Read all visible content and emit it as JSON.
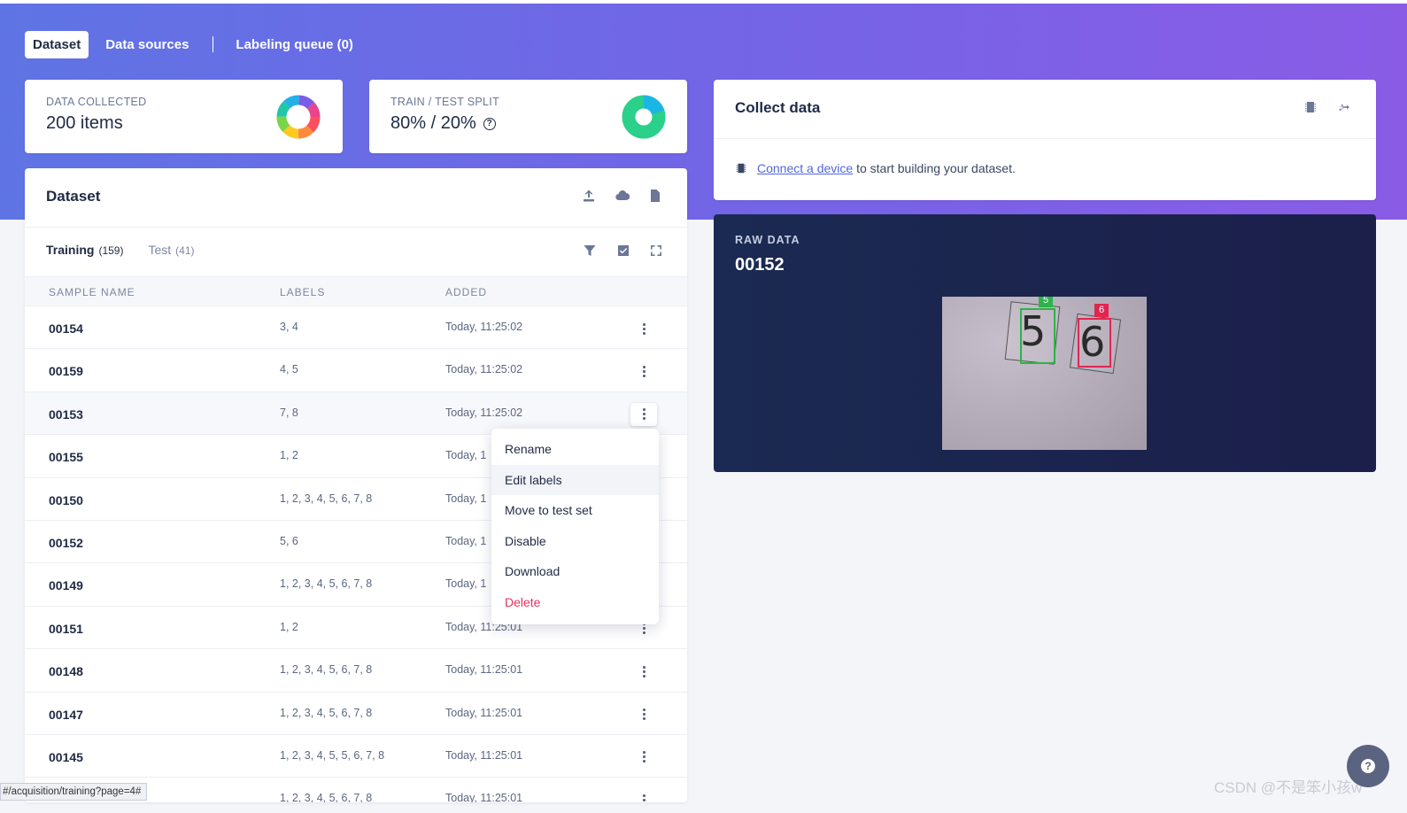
{
  "nav": {
    "tabs": [
      {
        "label": "Dataset",
        "active": true
      },
      {
        "label": "Data sources",
        "active": false
      },
      {
        "label": "Labeling queue (0)",
        "active": false
      }
    ]
  },
  "stats": {
    "collected": {
      "label": "DATA COLLECTED",
      "value": "200 items"
    },
    "split": {
      "label": "TRAIN / TEST SPLIT",
      "value": "80% / 20%",
      "help_icon": "question-circle-icon"
    }
  },
  "dataset": {
    "title": "Dataset",
    "header_icons": [
      "upload-icon",
      "cloud-icon",
      "document-icon"
    ],
    "tabs": [
      {
        "name": "Training",
        "count": "(159)",
        "active": true
      },
      {
        "name": "Test",
        "count": "(41)",
        "active": false
      }
    ],
    "toolbar_icons": [
      "filter-icon",
      "checkbox-icon",
      "expand-icon"
    ],
    "columns": [
      "SAMPLE NAME",
      "LABELS",
      "ADDED"
    ],
    "rows": [
      {
        "name": "00154",
        "labels": "3, 4",
        "added": "Today, 11:25:02"
      },
      {
        "name": "00159",
        "labels": "4, 5",
        "added": "Today, 11:25:02"
      },
      {
        "name": "00153",
        "labels": "7, 8",
        "added": "Today, 11:25:02"
      },
      {
        "name": "00155",
        "labels": "1, 2",
        "added": "Today, 1"
      },
      {
        "name": "00150",
        "labels": "1, 2, 3, 4, 5, 6, 7, 8",
        "added": "Today, 1"
      },
      {
        "name": "00152",
        "labels": "5, 6",
        "added": "Today, 1"
      },
      {
        "name": "00149",
        "labels": "1, 2, 3, 4, 5, 6, 7, 8",
        "added": "Today, 1"
      },
      {
        "name": "00151",
        "labels": "1, 2",
        "added": "Today, 11:25:01"
      },
      {
        "name": "00148",
        "labels": "1, 2, 3, 4, 5, 6, 7, 8",
        "added": "Today, 11:25:01"
      },
      {
        "name": "00147",
        "labels": "1, 2, 3, 4, 5, 6, 7, 8",
        "added": "Today, 11:25:01"
      },
      {
        "name": "00145",
        "labels": "1, 2, 3, 4, 5, 5, 6, 7, 8",
        "added": "Today, 11:25:01"
      },
      {
        "name": "",
        "labels": "1, 2, 3, 4, 5, 6, 7, 8",
        "added": "Today, 11:25:01"
      }
    ]
  },
  "context_menu": {
    "items": [
      "Rename",
      "Edit labels",
      "Move to test set",
      "Disable",
      "Download",
      "Delete"
    ],
    "hovered": "Edit labels",
    "danger": "Delete"
  },
  "collect": {
    "title": "Collect data",
    "header_icons": [
      "chip-icon",
      "usb-icon"
    ],
    "link_text": "Connect a device",
    "rest_text": " to start building your dataset."
  },
  "raw_data": {
    "label": "RAW DATA",
    "sample": "00152",
    "boxes": [
      {
        "label": "5",
        "color": "#2db34a"
      },
      {
        "label": "6",
        "color": "#e02650"
      }
    ],
    "digits": [
      "5",
      "6"
    ]
  },
  "status_bar": {
    "url": "#/acquisition/training?page=4#"
  },
  "watermark": "CSDN @不是笨小孩w",
  "colors": {
    "accent": "#5468d8",
    "danger": "#e3345f",
    "hero_start": "#5f74e4",
    "hero_end": "#8a5ce6"
  }
}
